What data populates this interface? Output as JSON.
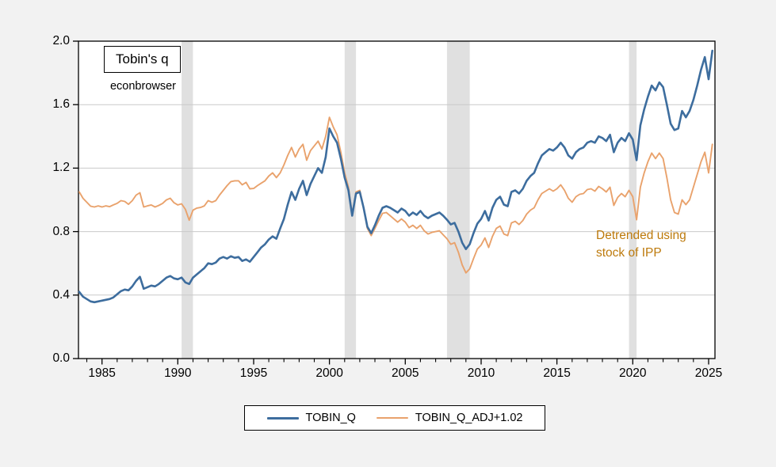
{
  "page": {
    "background": "#f2f2f2"
  },
  "chart_data": {
    "type": "line",
    "title": "Tobin's q",
    "watermark": "econbrowser",
    "annotation": {
      "line1": "Detrended using",
      "line2": "stock of IPP",
      "color": "#bd7a0c"
    },
    "xlabel": "",
    "ylabel": "",
    "xlim": [
      1983.45,
      2025.42
    ],
    "ylim": [
      0,
      2
    ],
    "y_ticks": [
      0.0,
      0.4,
      0.8,
      1.2,
      1.6,
      2.0
    ],
    "x_ticks_major": [
      1985,
      1990,
      1995,
      2000,
      2005,
      2010,
      2015,
      2020,
      2025
    ],
    "x_ticks_minor_range": [
      1984,
      2025
    ],
    "grid": true,
    "grid_color": "#c9c9c9",
    "band_color": "#e0e0e0",
    "recession_bands": [
      [
        1990.25,
        1991.0
      ],
      [
        2001.0,
        2001.75
      ],
      [
        2007.75,
        2009.25
      ],
      [
        2019.75,
        2020.25
      ]
    ],
    "x_start": 1983.5,
    "x_step": 0.25,
    "legend": {
      "position": "bottom-center",
      "border": "#000000",
      "background": "#ffffff"
    },
    "series": [
      {
        "name": "TOBIN_Q",
        "color": "#3d6d9e",
        "width": 2.6,
        "values": [
          0.42,
          0.39,
          0.375,
          0.36,
          0.355,
          0.36,
          0.365,
          0.37,
          0.375,
          0.385,
          0.405,
          0.425,
          0.435,
          0.43,
          0.455,
          0.49,
          0.515,
          0.44,
          0.45,
          0.46,
          0.455,
          0.47,
          0.49,
          0.51,
          0.52,
          0.505,
          0.5,
          0.51,
          0.48,
          0.47,
          0.51,
          0.53,
          0.55,
          0.57,
          0.6,
          0.595,
          0.605,
          0.63,
          0.64,
          0.63,
          0.645,
          0.635,
          0.64,
          0.615,
          0.625,
          0.61,
          0.64,
          0.67,
          0.7,
          0.72,
          0.75,
          0.77,
          0.755,
          0.82,
          0.88,
          0.97,
          1.05,
          1.0,
          1.07,
          1.12,
          1.03,
          1.1,
          1.15,
          1.2,
          1.17,
          1.27,
          1.45,
          1.4,
          1.36,
          1.26,
          1.14,
          1.06,
          0.9,
          1.04,
          1.05,
          0.95,
          0.83,
          0.79,
          0.84,
          0.9,
          0.95,
          0.96,
          0.95,
          0.935,
          0.92,
          0.945,
          0.93,
          0.9,
          0.92,
          0.905,
          0.93,
          0.9,
          0.885,
          0.9,
          0.91,
          0.92,
          0.9,
          0.875,
          0.845,
          0.855,
          0.8,
          0.73,
          0.69,
          0.72,
          0.79,
          0.85,
          0.88,
          0.93,
          0.87,
          0.95,
          1.0,
          1.02,
          0.97,
          0.96,
          1.05,
          1.06,
          1.04,
          1.07,
          1.12,
          1.15,
          1.17,
          1.23,
          1.28,
          1.3,
          1.32,
          1.31,
          1.33,
          1.36,
          1.33,
          1.28,
          1.26,
          1.3,
          1.32,
          1.33,
          1.36,
          1.37,
          1.36,
          1.4,
          1.39,
          1.37,
          1.41,
          1.3,
          1.36,
          1.39,
          1.37,
          1.42,
          1.38,
          1.25,
          1.47,
          1.57,
          1.65,
          1.72,
          1.69,
          1.74,
          1.71,
          1.6,
          1.48,
          1.44,
          1.45,
          1.56,
          1.52,
          1.56,
          1.63,
          1.72,
          1.82,
          1.9,
          1.76,
          1.94
        ]
      },
      {
        "name": "TOBIN_Q_ADJ+1.02",
        "color": "#e9a26c",
        "width": 1.9,
        "values": [
          1.05,
          1.01,
          0.985,
          0.96,
          0.955,
          0.962,
          0.955,
          0.962,
          0.957,
          0.968,
          0.978,
          0.995,
          0.99,
          0.972,
          0.995,
          1.03,
          1.045,
          0.955,
          0.962,
          0.968,
          0.955,
          0.965,
          0.978,
          1.0,
          1.01,
          0.982,
          0.968,
          0.975,
          0.94,
          0.872,
          0.935,
          0.948,
          0.952,
          0.962,
          0.995,
          0.985,
          0.995,
          1.03,
          1.06,
          1.09,
          1.115,
          1.12,
          1.12,
          1.095,
          1.11,
          1.07,
          1.072,
          1.09,
          1.105,
          1.12,
          1.15,
          1.17,
          1.14,
          1.17,
          1.22,
          1.28,
          1.33,
          1.27,
          1.32,
          1.35,
          1.25,
          1.31,
          1.34,
          1.37,
          1.32,
          1.4,
          1.52,
          1.46,
          1.41,
          1.3,
          1.17,
          1.08,
          0.91,
          1.05,
          1.06,
          0.95,
          0.82,
          0.775,
          0.82,
          0.87,
          0.915,
          0.92,
          0.9,
          0.88,
          0.86,
          0.88,
          0.86,
          0.825,
          0.84,
          0.82,
          0.84,
          0.805,
          0.785,
          0.795,
          0.8,
          0.805,
          0.78,
          0.755,
          0.72,
          0.73,
          0.67,
          0.59,
          0.54,
          0.565,
          0.63,
          0.69,
          0.715,
          0.76,
          0.7,
          0.77,
          0.82,
          0.835,
          0.785,
          0.775,
          0.855,
          0.865,
          0.845,
          0.87,
          0.91,
          0.935,
          0.95,
          1.0,
          1.04,
          1.055,
          1.07,
          1.055,
          1.07,
          1.095,
          1.06,
          1.01,
          0.985,
          1.02,
          1.035,
          1.04,
          1.065,
          1.07,
          1.055,
          1.085,
          1.07,
          1.05,
          1.08,
          0.965,
          1.015,
          1.04,
          1.02,
          1.06,
          1.02,
          0.875,
          1.08,
          1.17,
          1.24,
          1.295,
          1.26,
          1.295,
          1.26,
          1.14,
          1.0,
          0.92,
          0.91,
          1.0,
          0.97,
          1.0,
          1.08,
          1.16,
          1.24,
          1.3,
          1.17,
          1.35
        ]
      }
    ]
  }
}
